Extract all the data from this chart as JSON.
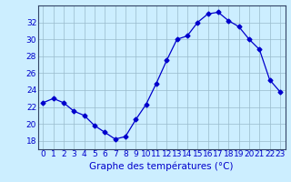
{
  "hours": [
    0,
    1,
    2,
    3,
    4,
    5,
    6,
    7,
    8,
    9,
    10,
    11,
    12,
    13,
    14,
    15,
    16,
    17,
    18,
    19,
    20,
    21,
    22,
    23
  ],
  "temperatures": [
    22.5,
    23.0,
    22.5,
    21.5,
    21.0,
    19.8,
    19.0,
    18.2,
    18.5,
    20.5,
    22.3,
    24.8,
    27.5,
    30.0,
    30.4,
    32.0,
    33.0,
    33.2,
    32.2,
    31.5,
    30.0,
    28.8,
    25.2,
    23.8
  ],
  "line_color": "#0000cc",
  "marker": "D",
  "marker_size": 2.5,
  "bg_color": "#cceeff",
  "grid_color": "#99bbcc",
  "xlabel": "Graphe des températures (°C)",
  "ylim": [
    17,
    34
  ],
  "yticks": [
    18,
    20,
    22,
    24,
    26,
    28,
    30,
    32
  ],
  "label_fontsize": 7.5,
  "tick_fontsize": 6.5,
  "spine_color": "#334466"
}
